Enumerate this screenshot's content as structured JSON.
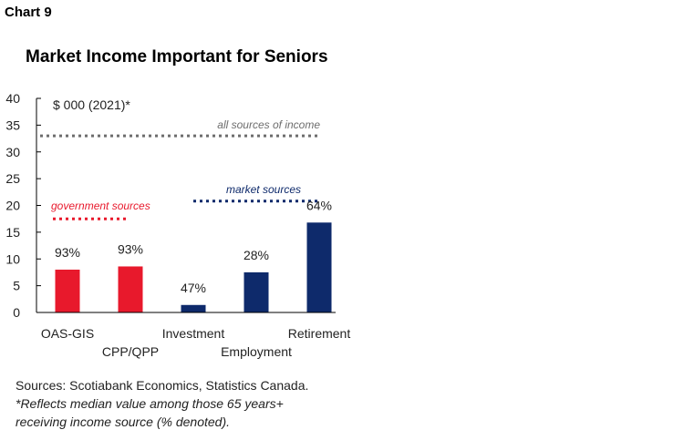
{
  "header": {
    "chart_number": "Chart 9",
    "title": "Market Income Important for Seniors"
  },
  "footer": {
    "sources": "Sources: Scotiabank Economics, Statistics Canada.",
    "note_line1": "*Reflects median value among those 65 years+",
    "note_line2": "receiving income source (% denoted)."
  },
  "colors": {
    "government": "#e8192c",
    "market": "#0e2a6b",
    "all": "#6d6d6d"
  },
  "chart_data": {
    "type": "bar",
    "title": "Market Income Important for Seniors",
    "ylabel": "$ 000 (2021)*",
    "xlabel": "",
    "ylim": [
      0,
      40
    ],
    "yticks": [
      0,
      5,
      10,
      15,
      20,
      25,
      30,
      35,
      40
    ],
    "categories": [
      "OAS-GIS",
      "CPP/QPP",
      "Investment",
      "Employment",
      "Retirement"
    ],
    "values": [
      8,
      8.6,
      1.4,
      7.5,
      16.8
    ],
    "data_labels": [
      "93%",
      "93%",
      "47%",
      "28%",
      "64%"
    ],
    "bar_groups": [
      "government",
      "government",
      "market",
      "market",
      "market"
    ],
    "reference_lines": [
      {
        "label": "all sources of income",
        "value": 33,
        "group": "all"
      },
      {
        "label": "market sources",
        "value": 20.8,
        "group": "market"
      },
      {
        "label": "government sources",
        "value": 17.5,
        "group": "government"
      }
    ],
    "grid": false,
    "legend": "none"
  }
}
